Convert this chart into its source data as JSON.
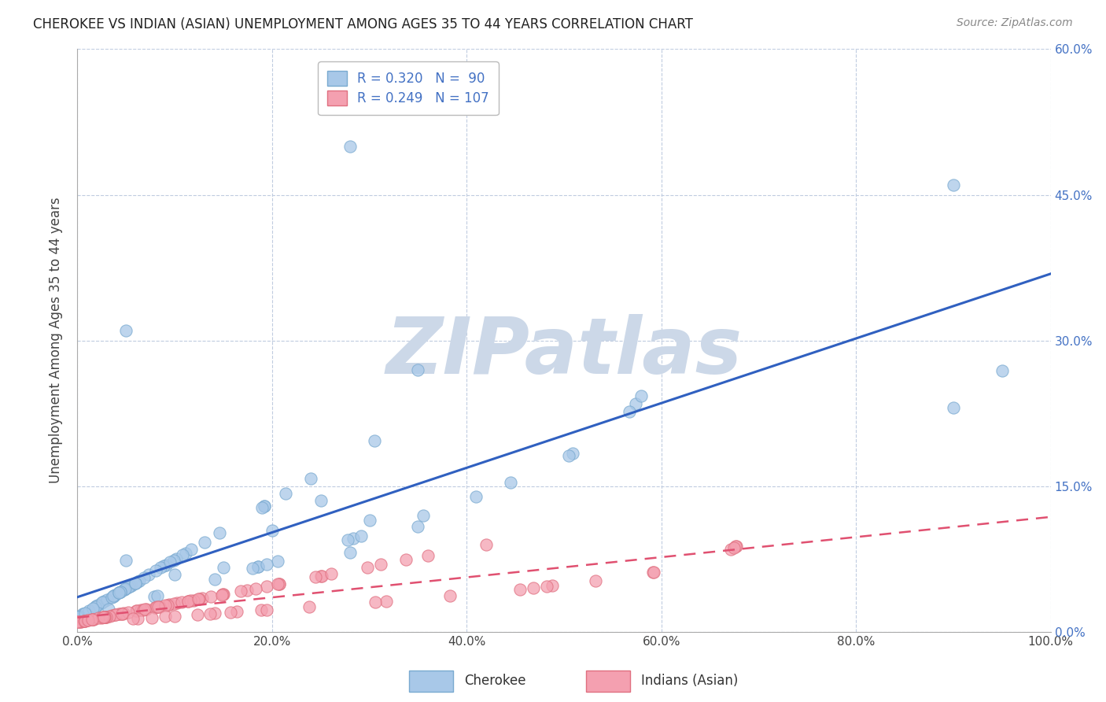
{
  "title": "CHEROKEE VS INDIAN (ASIAN) UNEMPLOYMENT AMONG AGES 35 TO 44 YEARS CORRELATION CHART",
  "source": "Source: ZipAtlas.com",
  "ylabel": "Unemployment Among Ages 35 to 44 years",
  "xlim": [
    0,
    100
  ],
  "ylim": [
    0,
    60
  ],
  "xticks": [
    0,
    20,
    40,
    60,
    80,
    100
  ],
  "xticklabels": [
    "0.0%",
    "20.0%",
    "40.0%",
    "60.0%",
    "80.0%",
    "100.0%"
  ],
  "yticks": [
    0,
    15,
    30,
    45,
    60
  ],
  "yticklabels": [
    "0.0%",
    "15.0%",
    "30.0%",
    "45.0%",
    "60.0%"
  ],
  "cherokee_color": "#a8c8e8",
  "indian_color": "#f4a0b0",
  "cherokee_edge_color": "#7aaad0",
  "indian_edge_color": "#e07080",
  "cherokee_line_color": "#3060c0",
  "indian_line_color": "#e05070",
  "cherokee_R": 0.32,
  "cherokee_N": 90,
  "indian_R": 0.249,
  "indian_N": 107,
  "watermark": "ZIPatlas",
  "watermark_color": "#ccd8e8",
  "background_color": "#ffffff",
  "grid_color": "#c0cce0",
  "legend_label_cherokee": "Cherokee",
  "legend_label_indian": "Indians (Asian)",
  "right_ytick_color": "#4472c4",
  "title_fontsize": 12,
  "source_fontsize": 10
}
